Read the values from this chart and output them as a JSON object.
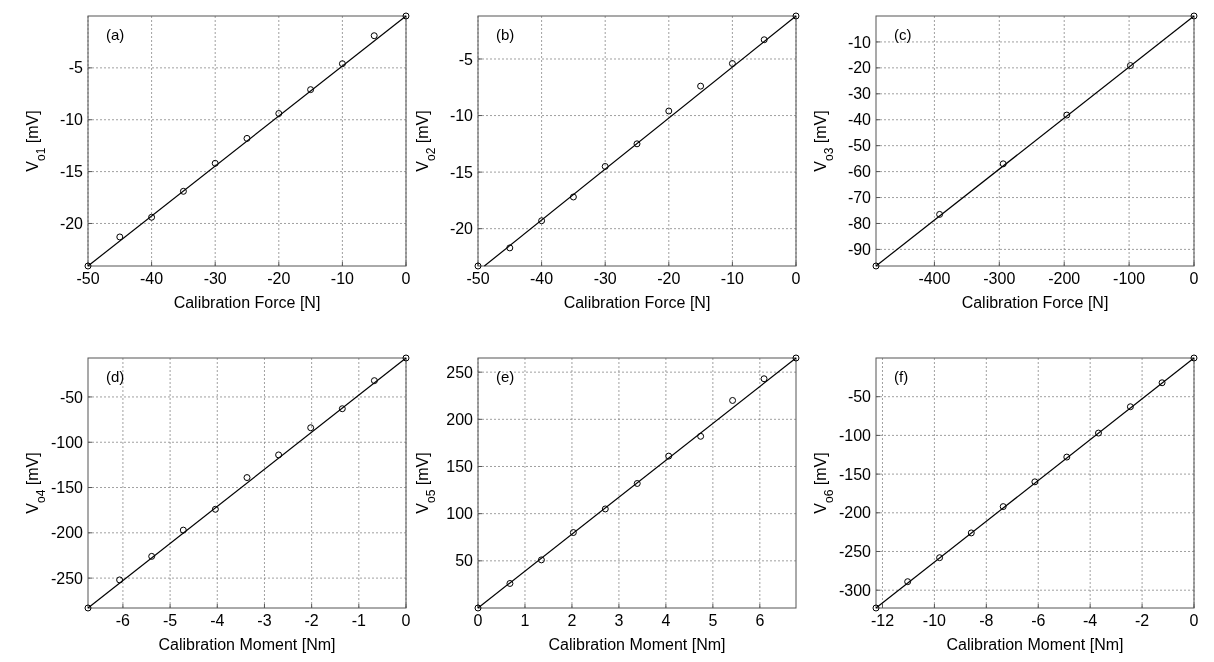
{
  "chart_data": [
    {
      "type": "scatter",
      "xlabel": "Calibration Force [N]",
      "ylabel": "V$_{o1}$ [mV]",
      "annotations": [
        "(a)"
      ],
      "xlim": [
        -50,
        0
      ],
      "ylim": [
        -24.1,
        0
      ],
      "xticks": [
        -50,
        -40,
        -30,
        -20,
        -10,
        0
      ],
      "yticks": [
        -20,
        -15,
        -10,
        -5
      ],
      "grid": true,
      "series": [
        {
          "marker": "circle",
          "color": "#000000",
          "x": [
            -50,
            -45,
            -40,
            -35,
            -30,
            -25,
            -20,
            -15,
            -10,
            -5,
            0
          ],
          "values": [
            -24.1,
            -21.3,
            -19.4,
            -16.9,
            -14.2,
            -11.8,
            -9.4,
            -7.1,
            -4.6,
            -1.9,
            0
          ]
        },
        {
          "type": "line",
          "color": "#000000",
          "x": [
            -50,
            0
          ],
          "values": [
            -24.1,
            0
          ]
        }
      ]
    },
    {
      "type": "scatter",
      "xlabel": "Calibration Force [N]",
      "ylabel": "V$_{o2}$ [mV]",
      "annotations": [
        "(b)"
      ],
      "xlim": [
        -50,
        0
      ],
      "ylim": [
        -23.3,
        -1.2
      ],
      "xticks": [
        -50,
        -40,
        -30,
        -20,
        -10,
        0
      ],
      "yticks": [
        -20,
        -15,
        -10,
        -5
      ],
      "grid": true,
      "series": [
        {
          "marker": "circle",
          "color": "#000000",
          "x": [
            -50,
            -45,
            -40,
            -35,
            -30,
            -25,
            -20,
            -15,
            -10,
            -5,
            0
          ],
          "values": [
            -23.3,
            -21.7,
            -19.3,
            -17.2,
            -14.5,
            -12.5,
            -9.6,
            -7.4,
            -5.4,
            -3.3,
            -1.2
          ]
        },
        {
          "type": "line",
          "color": "#000000",
          "x": [
            -49,
            0
          ],
          "values": [
            -23.3,
            -1.2
          ]
        }
      ]
    },
    {
      "type": "scatter",
      "xlabel": "Calibration Force [N]",
      "ylabel": "V$_{o3}$ [mV]",
      "annotations": [
        "(c)"
      ],
      "xlim": [
        -490,
        0
      ],
      "ylim": [
        -96.4,
        0
      ],
      "xticks": [
        -400,
        -300,
        -200,
        -100,
        0
      ],
      "yticks": [
        -90,
        -80,
        -70,
        -60,
        -50,
        -40,
        -30,
        -20,
        -10
      ],
      "grid": true,
      "series": [
        {
          "marker": "circle",
          "color": "#000000",
          "x": [
            -490,
            -392,
            -294,
            -196,
            -98,
            0
          ],
          "values": [
            -96.4,
            -76.5,
            -57.0,
            -38.2,
            -19.1,
            0
          ]
        },
        {
          "type": "line",
          "color": "#000000",
          "x": [
            -490,
            0
          ],
          "values": [
            -96.4,
            0
          ]
        }
      ]
    },
    {
      "type": "scatter",
      "xlabel": "Calibration Moment [Nm]",
      "ylabel": "V$_{o4}$ [mV]",
      "annotations": [
        "(d)"
      ],
      "xlim": [
        -6.74,
        0
      ],
      "ylim": [
        -283,
        -7
      ],
      "xticks": [
        -6,
        -5,
        -4,
        -3,
        -2,
        -1,
        0
      ],
      "yticks": [
        -250,
        -200,
        -150,
        -100,
        -50
      ],
      "grid": true,
      "series": [
        {
          "marker": "circle",
          "color": "#000000",
          "x": [
            -6.74,
            -6.07,
            -5.39,
            -4.72,
            -4.04,
            -3.37,
            -2.7,
            -2.02,
            -1.35,
            -0.67,
            0
          ],
          "values": [
            -283,
            -252,
            -226,
            -197,
            -174,
            -139,
            -114,
            -84,
            -63,
            -32,
            -7
          ]
        },
        {
          "type": "line",
          "color": "#000000",
          "x": [
            -6.74,
            0
          ],
          "values": [
            -283,
            -7
          ]
        }
      ]
    },
    {
      "type": "scatter",
      "xlabel": "Calibration Moment [Nm]",
      "ylabel": "V$_{o5}$ [mV]",
      "annotations": [
        "(e)"
      ],
      "xlim": [
        0,
        6.77
      ],
      "ylim": [
        0,
        265
      ],
      "xticks": [
        0,
        1,
        2,
        3,
        4,
        5,
        6
      ],
      "yticks": [
        50,
        100,
        150,
        200,
        250
      ],
      "grid": true,
      "series": [
        {
          "marker": "circle",
          "color": "#000000",
          "x": [
            0,
            0.68,
            1.35,
            2.03,
            2.71,
            3.39,
            4.06,
            4.74,
            5.42,
            6.09,
            6.77
          ],
          "values": [
            0,
            26,
            51,
            80,
            105,
            132,
            161,
            182,
            220,
            243,
            265
          ]
        },
        {
          "type": "line",
          "color": "#000000",
          "x": [
            0,
            6.77
          ],
          "values": [
            0,
            265
          ]
        }
      ]
    },
    {
      "type": "scatter",
      "xlabel": "Calibration Moment [Nm]",
      "ylabel": "V$_{o6}$ [mV]",
      "annotations": [
        "(f)"
      ],
      "xlim": [
        -12.25,
        0
      ],
      "ylim": [
        -323,
        0
      ],
      "xticks": [
        -12,
        -10,
        -8,
        -6,
        -4,
        -2,
        0
      ],
      "yticks": [
        -300,
        -250,
        -200,
        -150,
        -100,
        -50
      ],
      "grid": true,
      "series": [
        {
          "marker": "circle",
          "color": "#000000",
          "x": [
            -12.25,
            -11.03,
            -9.8,
            -8.58,
            -7.35,
            -6.13,
            -4.9,
            -3.68,
            -2.45,
            -1.23,
            0
          ],
          "values": [
            -323,
            -289,
            -258,
            -226,
            -192,
            -160,
            -128,
            -97,
            -63,
            -32,
            0
          ]
        },
        {
          "type": "line",
          "color": "#000000",
          "x": [
            -12.25,
            0
          ],
          "values": [
            -323,
            0
          ]
        }
      ]
    }
  ]
}
